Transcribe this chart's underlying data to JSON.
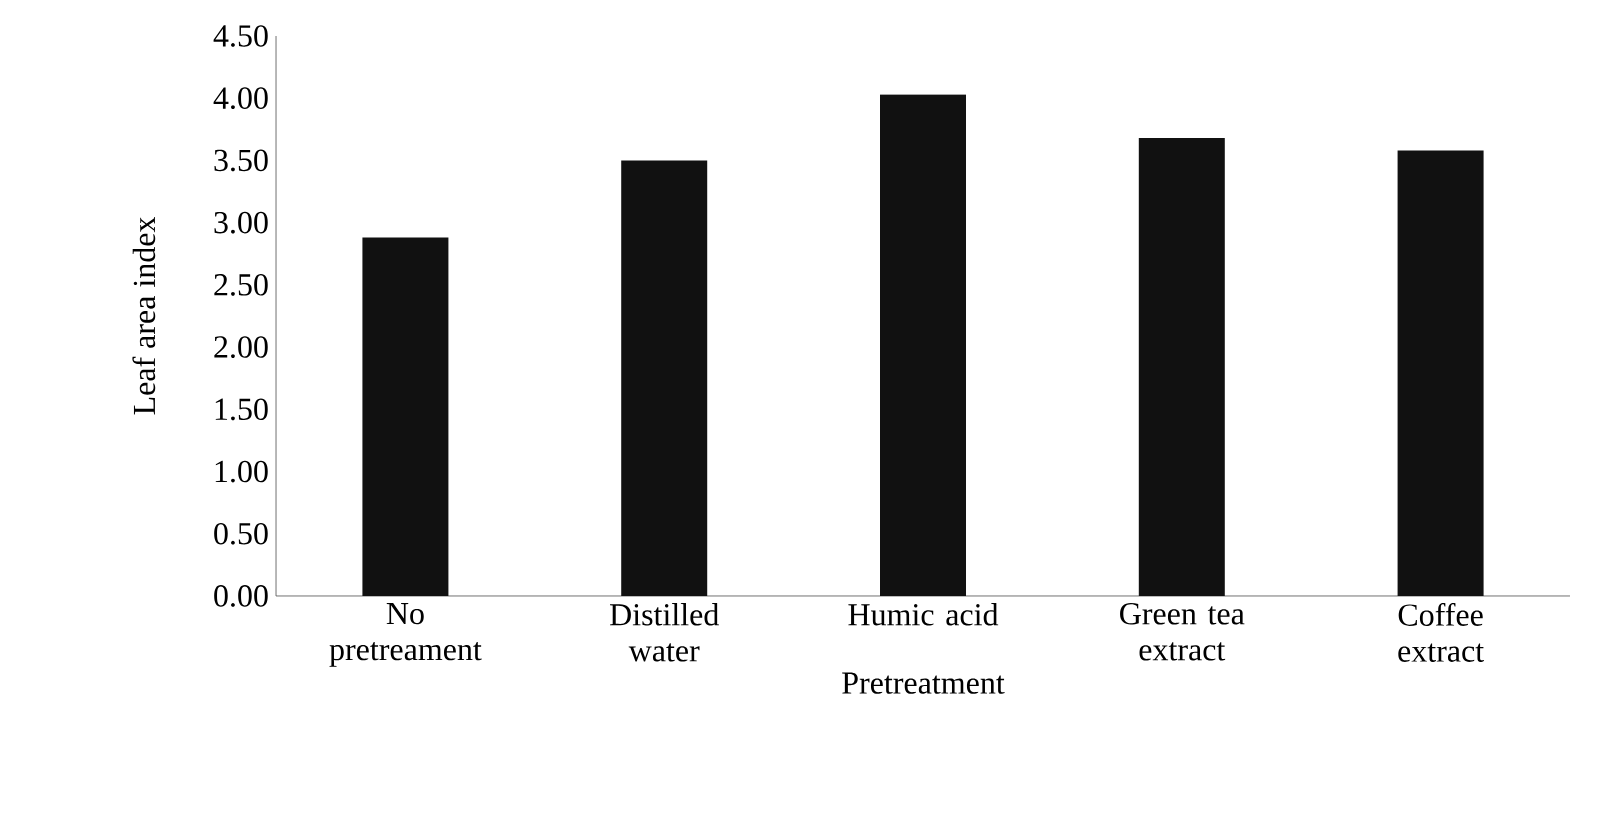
{
  "chart_data": {
    "type": "bar",
    "xlabel": "Pretreatment",
    "ylabel": "Leaf area index",
    "categories": [
      "No pretreament",
      "Distilled water",
      "Humic acid",
      "Green tea extract",
      "Coffee extract"
    ],
    "values": [
      2.88,
      3.5,
      4.03,
      3.68,
      3.58
    ],
    "color": "#111111",
    "ylim": [
      0,
      4.5
    ],
    "yticks": [
      {
        "value": 0,
        "label": "0.00"
      },
      {
        "value": 0.5,
        "label": "0.50"
      },
      {
        "value": 1,
        "label": "1.00"
      },
      {
        "value": 1.5,
        "label": "1.50"
      },
      {
        "value": 2,
        "label": "2.00"
      },
      {
        "value": 2.5,
        "label": "2.50"
      },
      {
        "value": 3,
        "label": "3.00"
      },
      {
        "value": 3.5,
        "label": "3.50"
      },
      {
        "value": 4,
        "label": "4.00"
      },
      {
        "value": 4.5,
        "label": "4.50"
      }
    ]
  }
}
